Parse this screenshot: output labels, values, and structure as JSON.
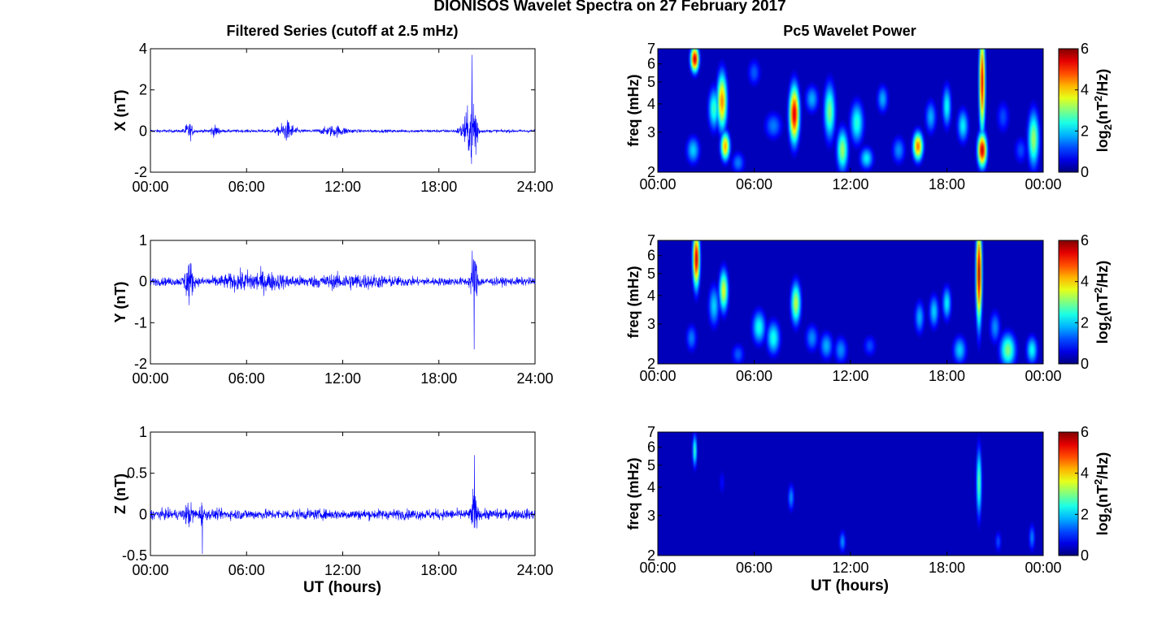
{
  "figure": {
    "title": "DIONISOS Wavelet Spectra on 27 February 2017",
    "left_title": "Filtered Series (cutoff at 2.5 mHz)",
    "right_title": "Pc5 Wavelet Power",
    "xlabel": "UT (hours)"
  },
  "chart_data": [
    {
      "type": "line",
      "panel": "X time series",
      "ylabel": "X (nT)",
      "ylim": [
        -2,
        4
      ],
      "yticks": [
        "-2",
        "0",
        "2",
        "4"
      ],
      "xlim": [
        0,
        24
      ],
      "xticks": [
        "00:00",
        "06:00",
        "12:00",
        "18:00",
        "24:00"
      ],
      "color": "#0000ff",
      "noise_amplitude": 0.08,
      "bursts": [
        {
          "t": 2.4,
          "amp": 0.45,
          "width": 0.25
        },
        {
          "t": 4.0,
          "amp": 0.25,
          "width": 0.3
        },
        {
          "t": 8.5,
          "amp": 0.5,
          "width": 0.5
        },
        {
          "t": 11.5,
          "amp": 0.25,
          "width": 0.8
        },
        {
          "t": 20.2,
          "amp": 2.9,
          "width": 0.18
        },
        {
          "t": 19.8,
          "amp": 1.0,
          "width": 0.4
        }
      ],
      "peak_max": 3.7,
      "peak_min": -1.6
    },
    {
      "type": "line",
      "panel": "Y time series",
      "ylabel": "Y (nT)",
      "ylim": [
        -2,
        1
      ],
      "yticks": [
        "-2",
        "-1",
        "0",
        "1"
      ],
      "xlim": [
        0,
        24
      ],
      "xticks": [
        "00:00",
        "06:00",
        "12:00",
        "18:00",
        "24:00"
      ],
      "color": "#0000ff",
      "noise_amplitude": 0.11,
      "bursts": [
        {
          "t": 2.4,
          "amp": 0.55,
          "width": 0.25
        },
        {
          "t": 6.5,
          "amp": 0.2,
          "width": 2.0
        },
        {
          "t": 12.5,
          "amp": 0.12,
          "width": 2.5
        },
        {
          "t": 20.2,
          "amp": 0.8,
          "width": 0.2
        }
      ],
      "peak_max": 0.75,
      "peak_min": -1.65
    },
    {
      "type": "line",
      "panel": "Z time series",
      "ylabel": "Z (nT)",
      "ylim": [
        -0.5,
        1
      ],
      "yticks": [
        "-0.5",
        "0",
        "0.5",
        "1"
      ],
      "xlim": [
        0,
        24
      ],
      "xticks": [
        "00:00",
        "06:00",
        "12:00",
        "18:00",
        "24:00"
      ],
      "color": "#0000ff",
      "noise_amplitude": 0.07,
      "bursts": [
        {
          "t": 2.4,
          "amp": 0.12,
          "width": 0.25
        },
        {
          "t": 3.2,
          "amp": 0.15,
          "width": 0.1
        },
        {
          "t": 20.2,
          "amp": 0.35,
          "width": 0.15
        }
      ],
      "peak_max": 0.72,
      "peak_min": -0.48
    },
    {
      "type": "heatmap",
      "panel": "X wavelet power",
      "ylabel": "freq (mHz)",
      "ylim": [
        2,
        7
      ],
      "yscale": "log",
      "yticks": [
        "2",
        "3",
        "4",
        "5",
        "6",
        "7"
      ],
      "xlim": [
        0,
        24
      ],
      "xticks": [
        "00:00",
        "06:00",
        "12:00",
        "18:00",
        "00:00"
      ],
      "colorbar": {
        "label": "log2(nT^2/Hz)",
        "ticks": [
          "0",
          "2",
          "4",
          "6"
        ],
        "range": [
          0,
          6
        ]
      },
      "blobs": [
        {
          "t": 2.3,
          "f": 6.3,
          "p": 5.6,
          "dt": 0.18,
          "df": 0.09
        },
        {
          "t": 2.2,
          "f": 2.5,
          "p": 2.0,
          "dt": 0.3,
          "df": 0.1
        },
        {
          "t": 3.5,
          "f": 3.8,
          "p": 2.6,
          "dt": 0.25,
          "df": 0.15
        },
        {
          "t": 4.0,
          "f": 4.1,
          "p": 4.5,
          "dt": 0.22,
          "df": 0.2
        },
        {
          "t": 4.2,
          "f": 2.6,
          "p": 4.3,
          "dt": 0.2,
          "df": 0.1
        },
        {
          "t": 5.0,
          "f": 2.2,
          "p": 1.5,
          "dt": 0.3,
          "df": 0.08
        },
        {
          "t": 6.0,
          "f": 5.5,
          "p": 1.3,
          "dt": 0.3,
          "df": 0.1
        },
        {
          "t": 7.2,
          "f": 3.2,
          "p": 1.5,
          "dt": 0.4,
          "df": 0.1
        },
        {
          "t": 8.5,
          "f": 3.6,
          "p": 5.5,
          "dt": 0.22,
          "df": 0.2
        },
        {
          "t": 9.6,
          "f": 4.2,
          "p": 1.8,
          "dt": 0.3,
          "df": 0.1
        },
        {
          "t": 10.7,
          "f": 3.7,
          "p": 3.0,
          "dt": 0.25,
          "df": 0.2
        },
        {
          "t": 11.5,
          "f": 2.5,
          "p": 3.2,
          "dt": 0.25,
          "df": 0.15
        },
        {
          "t": 12.4,
          "f": 3.3,
          "p": 2.5,
          "dt": 0.3,
          "df": 0.15
        },
        {
          "t": 13.0,
          "f": 2.3,
          "p": 2.2,
          "dt": 0.3,
          "df": 0.08
        },
        {
          "t": 14.0,
          "f": 4.2,
          "p": 1.8,
          "dt": 0.25,
          "df": 0.1
        },
        {
          "t": 15.0,
          "f": 2.5,
          "p": 1.6,
          "dt": 0.3,
          "df": 0.1
        },
        {
          "t": 16.2,
          "f": 2.6,
          "p": 4.6,
          "dt": 0.22,
          "df": 0.1
        },
        {
          "t": 17.0,
          "f": 3.5,
          "p": 1.8,
          "dt": 0.25,
          "df": 0.12
        },
        {
          "t": 18.0,
          "f": 3.9,
          "p": 2.3,
          "dt": 0.2,
          "df": 0.15
        },
        {
          "t": 19.0,
          "f": 3.2,
          "p": 2.2,
          "dt": 0.25,
          "df": 0.12
        },
        {
          "t": 20.2,
          "f": 2.5,
          "p": 5.6,
          "dt": 0.2,
          "df": 0.12
        },
        {
          "t": 20.2,
          "f": 5.0,
          "p": 5.4,
          "dt": 0.13,
          "df": 0.35
        },
        {
          "t": 21.5,
          "f": 3.5,
          "p": 1.2,
          "dt": 0.3,
          "df": 0.12
        },
        {
          "t": 22.6,
          "f": 2.5,
          "p": 1.2,
          "dt": 0.3,
          "df": 0.1
        },
        {
          "t": 23.4,
          "f": 2.8,
          "p": 3.2,
          "dt": 0.25,
          "df": 0.2
        }
      ]
    },
    {
      "type": "heatmap",
      "panel": "Y wavelet power",
      "ylabel": "freq (mHz)",
      "ylim": [
        2,
        7
      ],
      "yscale": "log",
      "yticks": [
        "2",
        "3",
        "4",
        "5",
        "6",
        "7"
      ],
      "xlim": [
        0,
        24
      ],
      "xticks": [
        "00:00",
        "06:00",
        "12:00",
        "18:00",
        "00:00"
      ],
      "colorbar": {
        "label": "log2(nT^2/Hz)",
        "ticks": [
          "0",
          "2",
          "4",
          "6"
        ],
        "range": [
          0,
          6
        ]
      },
      "blobs": [
        {
          "t": 2.4,
          "f": 5.8,
          "p": 5.6,
          "dt": 0.15,
          "df": 0.2
        },
        {
          "t": 2.1,
          "f": 2.6,
          "p": 1.5,
          "dt": 0.25,
          "df": 0.1
        },
        {
          "t": 3.5,
          "f": 3.6,
          "p": 2.0,
          "dt": 0.25,
          "df": 0.15
        },
        {
          "t": 4.1,
          "f": 4.2,
          "p": 3.6,
          "dt": 0.2,
          "df": 0.15
        },
        {
          "t": 5.0,
          "f": 2.2,
          "p": 1.3,
          "dt": 0.3,
          "df": 0.08
        },
        {
          "t": 6.3,
          "f": 2.9,
          "p": 2.4,
          "dt": 0.3,
          "df": 0.12
        },
        {
          "t": 7.2,
          "f": 2.6,
          "p": 2.4,
          "dt": 0.3,
          "df": 0.12
        },
        {
          "t": 8.6,
          "f": 3.7,
          "p": 3.4,
          "dt": 0.22,
          "df": 0.15
        },
        {
          "t": 9.6,
          "f": 2.6,
          "p": 1.6,
          "dt": 0.3,
          "df": 0.1
        },
        {
          "t": 10.5,
          "f": 2.4,
          "p": 1.8,
          "dt": 0.3,
          "df": 0.1
        },
        {
          "t": 11.4,
          "f": 2.3,
          "p": 1.6,
          "dt": 0.3,
          "df": 0.1
        },
        {
          "t": 13.2,
          "f": 2.4,
          "p": 1.2,
          "dt": 0.3,
          "df": 0.08
        },
        {
          "t": 16.3,
          "f": 3.2,
          "p": 1.8,
          "dt": 0.22,
          "df": 0.12
        },
        {
          "t": 17.2,
          "f": 3.4,
          "p": 2.0,
          "dt": 0.22,
          "df": 0.12
        },
        {
          "t": 18.0,
          "f": 3.7,
          "p": 2.2,
          "dt": 0.2,
          "df": 0.12
        },
        {
          "t": 18.8,
          "f": 2.3,
          "p": 2.0,
          "dt": 0.3,
          "df": 0.1
        },
        {
          "t": 20.0,
          "f": 5.0,
          "p": 5.8,
          "dt": 0.13,
          "df": 0.35
        },
        {
          "t": 21.0,
          "f": 2.9,
          "p": 1.6,
          "dt": 0.25,
          "df": 0.12
        },
        {
          "t": 21.8,
          "f": 2.3,
          "p": 3.0,
          "dt": 0.35,
          "df": 0.12
        },
        {
          "t": 23.3,
          "f": 2.3,
          "p": 2.3,
          "dt": 0.25,
          "df": 0.1
        }
      ]
    },
    {
      "type": "heatmap",
      "panel": "Z wavelet power",
      "ylabel": "freq (mHz)",
      "ylim": [
        2,
        7
      ],
      "yscale": "log",
      "yticks": [
        "2",
        "3",
        "4",
        "5",
        "6",
        "7"
      ],
      "xlim": [
        0,
        24
      ],
      "xticks": [
        "00:00",
        "06:00",
        "12:00",
        "18:00",
        "00:00"
      ],
      "colorbar": {
        "label": "log2(nT^2/Hz)",
        "ticks": [
          "0",
          "2",
          "4",
          "6"
        ],
        "range": [
          0,
          6
        ]
      },
      "blobs": [
        {
          "t": 2.3,
          "f": 5.8,
          "p": 2.6,
          "dt": 0.1,
          "df": 0.12
        },
        {
          "t": 4.0,
          "f": 4.2,
          "p": 0.8,
          "dt": 0.15,
          "df": 0.1
        },
        {
          "t": 8.3,
          "f": 3.6,
          "p": 1.6,
          "dt": 0.15,
          "df": 0.1
        },
        {
          "t": 11.5,
          "f": 2.3,
          "p": 1.6,
          "dt": 0.15,
          "df": 0.08
        },
        {
          "t": 20.0,
          "f": 4.2,
          "p": 2.8,
          "dt": 0.12,
          "df": 0.25
        },
        {
          "t": 21.2,
          "f": 2.3,
          "p": 1.2,
          "dt": 0.15,
          "df": 0.08
        },
        {
          "t": 23.3,
          "f": 2.4,
          "p": 1.5,
          "dt": 0.15,
          "df": 0.1
        }
      ]
    }
  ]
}
